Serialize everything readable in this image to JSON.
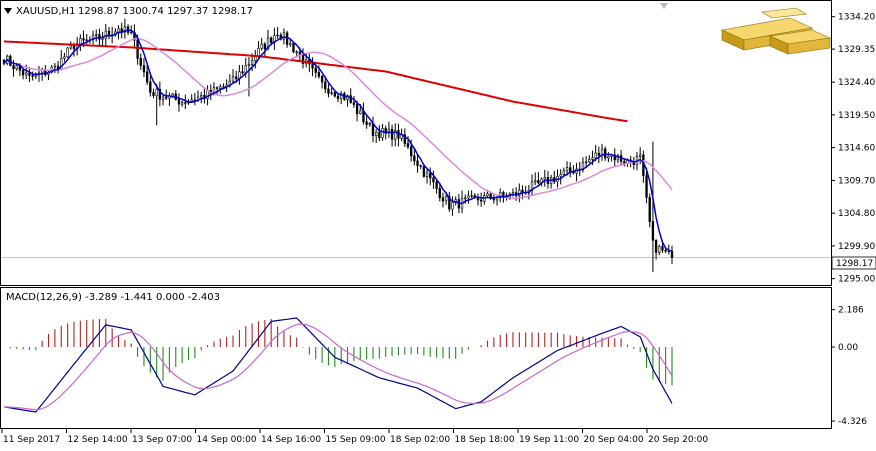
{
  "header": {
    "symbol_label": "XAUUSD,H1",
    "ohlc_label": "1298.87 1300.74 1297.37 1298.17",
    "macd_label": "MACD(12,26,9) -3.289 -1.441 0.000 -2.403"
  },
  "price_axis": {
    "ticks": [
      "1334.20",
      "1329.35",
      "1324.40",
      "1319.50",
      "1314.60",
      "1309.70",
      "1304.80",
      "1299.90",
      "1295.00"
    ],
    "current_price": "1298.17"
  },
  "macd_axis": {
    "ticks": [
      "2.186",
      "0.00",
      "-4.326"
    ]
  },
  "time_axis": {
    "ticks": [
      "11 Sep 2017",
      "12 Sep 14:00",
      "13 Sep 07:00",
      "14 Sep 00:00",
      "14 Sep 16:00",
      "15 Sep 09:00",
      "18 Sep 02:00",
      "18 Sep 18:00",
      "19 Sep 11:00",
      "20 Sep 04:00",
      "20 Sep 20:00"
    ]
  },
  "colors": {
    "bull_hist": "#b22222",
    "bear_hist": "#228b22",
    "ma_fast": "#0000cd",
    "ma_mid": "#dd88dd",
    "ma_slow": "#dd0000",
    "macd_line": "#00008b",
    "signal_line": "#cc66cc",
    "candle": "#000000"
  },
  "logo": {
    "icon": "gold-bars-icon"
  },
  "chart_data": {
    "type": "candlestick",
    "symbol": "XAUUSD",
    "timeframe": "H1",
    "ylim": [
      1294.5,
      1335.5
    ],
    "last": {
      "open": 1298.87,
      "high": 1300.74,
      "low": 1297.37,
      "close": 1298.17
    },
    "price_keypoints": [
      {
        "i": 0,
        "p": 1328.0
      },
      {
        "i": 8,
        "p": 1325.0
      },
      {
        "i": 16,
        "p": 1326.5
      },
      {
        "i": 22,
        "p": 1330.0
      },
      {
        "i": 30,
        "p": 1331.0
      },
      {
        "i": 36,
        "p": 1332.5
      },
      {
        "i": 40,
        "p": 1331.5
      },
      {
        "i": 46,
        "p": 1323.0
      },
      {
        "i": 56,
        "p": 1321.5
      },
      {
        "i": 64,
        "p": 1322.5
      },
      {
        "i": 72,
        "p": 1324.5
      },
      {
        "i": 80,
        "p": 1329.0
      },
      {
        "i": 86,
        "p": 1332.0
      },
      {
        "i": 92,
        "p": 1329.0
      },
      {
        "i": 100,
        "p": 1324.0
      },
      {
        "i": 108,
        "p": 1322.0
      },
      {
        "i": 116,
        "p": 1317.0
      },
      {
        "i": 124,
        "p": 1316.5
      },
      {
        "i": 132,
        "p": 1311.0
      },
      {
        "i": 140,
        "p": 1306.0
      },
      {
        "i": 150,
        "p": 1307.0
      },
      {
        "i": 160,
        "p": 1307.5
      },
      {
        "i": 170,
        "p": 1309.5
      },
      {
        "i": 180,
        "p": 1311.5
      },
      {
        "i": 188,
        "p": 1314.0
      },
      {
        "i": 196,
        "p": 1312.5
      },
      {
        "i": 200,
        "p": 1313.0
      },
      {
        "i": 204,
        "p": 1300.0
      },
      {
        "i": 210,
        "p": 1298.17
      }
    ],
    "ma_slow_keypoints": [
      {
        "i": 0,
        "p": 1330.5
      },
      {
        "i": 40,
        "p": 1329.6
      },
      {
        "i": 80,
        "p": 1328.3
      },
      {
        "i": 120,
        "p": 1326.0
      },
      {
        "i": 160,
        "p": 1321.5
      },
      {
        "i": 190,
        "p": 1319.0
      },
      {
        "i": 210,
        "p": 1317.5
      }
    ],
    "macd_ylim": [
      -4.5,
      2.4
    ],
    "macd_keypoints": [
      {
        "i": 0,
        "m": -3.5
      },
      {
        "i": 10,
        "m": -3.8
      },
      {
        "i": 22,
        "m": -1.0
      },
      {
        "i": 32,
        "m": 1.3
      },
      {
        "i": 40,
        "m": 1.0
      },
      {
        "i": 50,
        "m": -2.3
      },
      {
        "i": 60,
        "m": -2.8
      },
      {
        "i": 72,
        "m": -1.4
      },
      {
        "i": 84,
        "m": 1.5
      },
      {
        "i": 92,
        "m": 1.7
      },
      {
        "i": 104,
        "m": -0.6
      },
      {
        "i": 118,
        "m": -1.8
      },
      {
        "i": 130,
        "m": -2.4
      },
      {
        "i": 142,
        "m": -3.6
      },
      {
        "i": 150,
        "m": -3.2
      },
      {
        "i": 160,
        "m": -1.8
      },
      {
        "i": 174,
        "m": -0.2
      },
      {
        "i": 188,
        "m": 0.8
      },
      {
        "i": 194,
        "m": 1.2
      },
      {
        "i": 200,
        "m": 0.6
      },
      {
        "i": 204,
        "m": -1.3
      },
      {
        "i": 210,
        "m": -3.289
      }
    ]
  }
}
